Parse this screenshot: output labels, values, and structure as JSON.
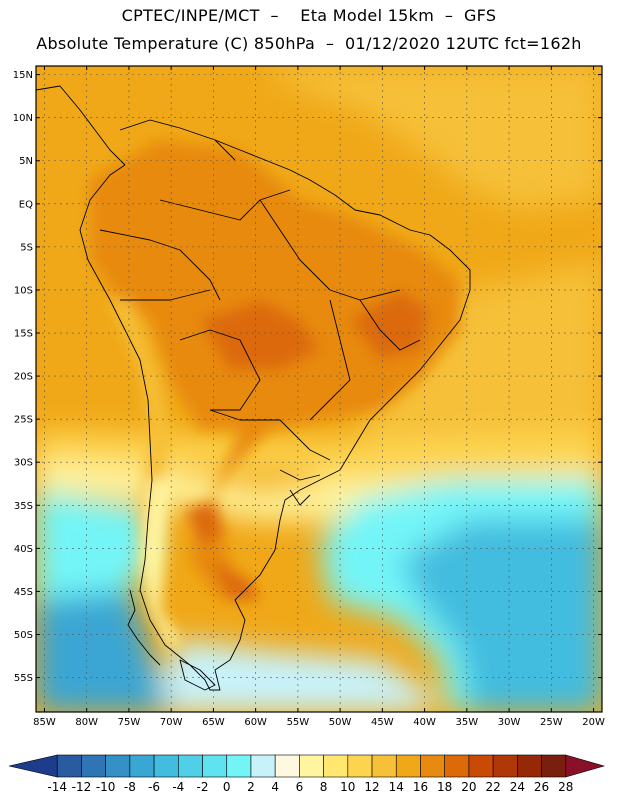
{
  "header": {
    "line1": "CPTEC/INPE/MCT  –    Eta Model 15km  –  GFS",
    "line2": "Absolute Temperature (C) 850hPa  –  01/12/2020 12UTC fct=162h"
  },
  "map": {
    "lon_range": [
      -86,
      -19
    ],
    "lat_range": [
      -59,
      16
    ],
    "lat_ticks": [
      {
        "value": 15,
        "label": "15N"
      },
      {
        "value": 10,
        "label": "10N"
      },
      {
        "value": 5,
        "label": "5N"
      },
      {
        "value": 0,
        "label": "EQ"
      },
      {
        "value": -5,
        "label": "5S"
      },
      {
        "value": -10,
        "label": "10S"
      },
      {
        "value": -15,
        "label": "15S"
      },
      {
        "value": -20,
        "label": "20S"
      },
      {
        "value": -25,
        "label": "25S"
      },
      {
        "value": -30,
        "label": "30S"
      },
      {
        "value": -35,
        "label": "35S"
      },
      {
        "value": -40,
        "label": "40S"
      },
      {
        "value": -45,
        "label": "45S"
      },
      {
        "value": -50,
        "label": "50S"
      },
      {
        "value": -55,
        "label": "55S"
      }
    ],
    "lon_ticks": [
      {
        "value": -85,
        "label": "85W"
      },
      {
        "value": -80,
        "label": "80W"
      },
      {
        "value": -75,
        "label": "75W"
      },
      {
        "value": -70,
        "label": "70W"
      },
      {
        "value": -65,
        "label": "65W"
      },
      {
        "value": -60,
        "label": "60W"
      },
      {
        "value": -55,
        "label": "55W"
      },
      {
        "value": -50,
        "label": "50W"
      },
      {
        "value": -45,
        "label": "45W"
      },
      {
        "value": -40,
        "label": "40W"
      },
      {
        "value": -35,
        "label": "35W"
      },
      {
        "value": -30,
        "label": "30W"
      },
      {
        "value": -25,
        "label": "25W"
      },
      {
        "value": -20,
        "label": "20W"
      }
    ],
    "colorbar": {
      "labels": [
        "-14",
        "-12",
        "-10",
        "-8",
        "-6",
        "-4",
        "-2",
        "0",
        "2",
        "4",
        "6",
        "8",
        "10",
        "12",
        "14",
        "16",
        "18",
        "20",
        "22",
        "24",
        "26",
        "28"
      ],
      "colors": [
        "#1e3c8c",
        "#2a5aa0",
        "#2f75b5",
        "#3590c6",
        "#3aa6d3",
        "#42bcdf",
        "#4fd0e8",
        "#5fe3f0",
        "#73f5f8",
        "#c8f2fa",
        "#fff8e0",
        "#fff5a0",
        "#ffe770",
        "#fdd450",
        "#f6c038",
        "#f0a818",
        "#e88a10",
        "#dc6a08",
        "#c84a05",
        "#b03808",
        "#962808",
        "#7a1e10",
        "#8a0f28"
      ]
    }
  }
}
